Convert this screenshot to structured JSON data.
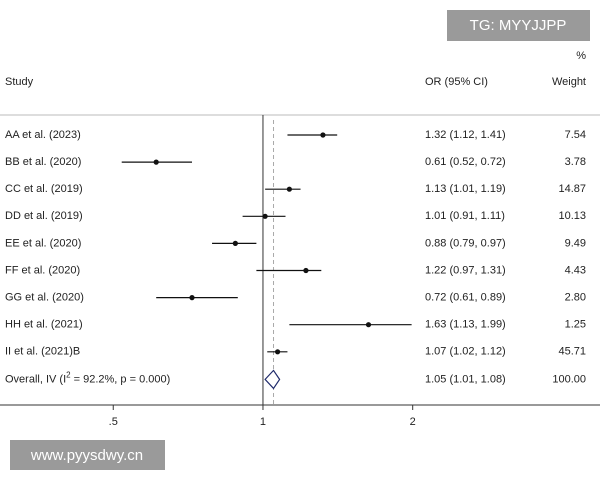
{
  "chart_data": {
    "type": "forest",
    "xscale": "log",
    "xlim": [
      0.296,
      4.76
    ],
    "xticks": [
      {
        "value": 0.5,
        "label": ".5"
      },
      1,
      2
    ],
    "reference_line": 1,
    "headers": {
      "study": "Study",
      "ci": "OR (95% CI)",
      "weight_unit": "%",
      "weight": "Weight"
    },
    "studies": [
      {
        "name": "AA et al. (2023)",
        "or": 1.32,
        "lo": 1.12,
        "hi": 1.41,
        "ci_label": "1.32 (1.12, 1.41)",
        "weight": 7.54,
        "weight_label": "7.54"
      },
      {
        "name": "BB et al. (2020)",
        "or": 0.61,
        "lo": 0.52,
        "hi": 0.72,
        "ci_label": "0.61 (0.52, 0.72)",
        "weight": 3.78,
        "weight_label": "3.78"
      },
      {
        "name": "CC et al. (2019)",
        "or": 1.13,
        "lo": 1.01,
        "hi": 1.19,
        "ci_label": "1.13 (1.01, 1.19)",
        "weight": 14.87,
        "weight_label": "14.87"
      },
      {
        "name": "DD et al. (2019)",
        "or": 1.01,
        "lo": 0.91,
        "hi": 1.11,
        "ci_label": "1.01 (0.91, 1.11)",
        "weight": 10.13,
        "weight_label": "10.13"
      },
      {
        "name": "EE et al. (2020)",
        "or": 0.88,
        "lo": 0.79,
        "hi": 0.97,
        "ci_label": "0.88 (0.79, 0.97)",
        "weight": 9.49,
        "weight_label": "9.49"
      },
      {
        "name": "FF et al. (2020)",
        "or": 1.22,
        "lo": 0.97,
        "hi": 1.31,
        "ci_label": "1.22 (0.97, 1.31)",
        "weight": 4.43,
        "weight_label": "4.43"
      },
      {
        "name": "GG et al. (2020)",
        "or": 0.72,
        "lo": 0.61,
        "hi": 0.89,
        "ci_label": "0.72 (0.61, 0.89)",
        "weight": 2.8,
        "weight_label": "2.80"
      },
      {
        "name": "HH et al. (2021)",
        "or": 1.63,
        "lo": 1.13,
        "hi": 1.99,
        "ci_label": "1.63 (1.13, 1.99)",
        "weight": 1.25,
        "weight_label": "1.25"
      },
      {
        "name": "II et al. (2021)B",
        "or": 1.07,
        "lo": 1.02,
        "hi": 1.12,
        "ci_label": "1.07 (1.02, 1.12)",
        "weight": 45.71,
        "weight_label": "45.71"
      }
    ],
    "overall": {
      "label_start": "Overall, IV (I",
      "label_sup": "2",
      "label_end": " = 92.2%, p = 0.000)",
      "or": 1.05,
      "lo": 1.01,
      "hi": 1.08,
      "ci_label": "1.05 (1.01, 1.08)",
      "weight": 100,
      "weight_label": "100.00"
    }
  },
  "watermarks": {
    "banner": "TG: MYYJJPP",
    "site": "www.pyysdwy.cn"
  }
}
